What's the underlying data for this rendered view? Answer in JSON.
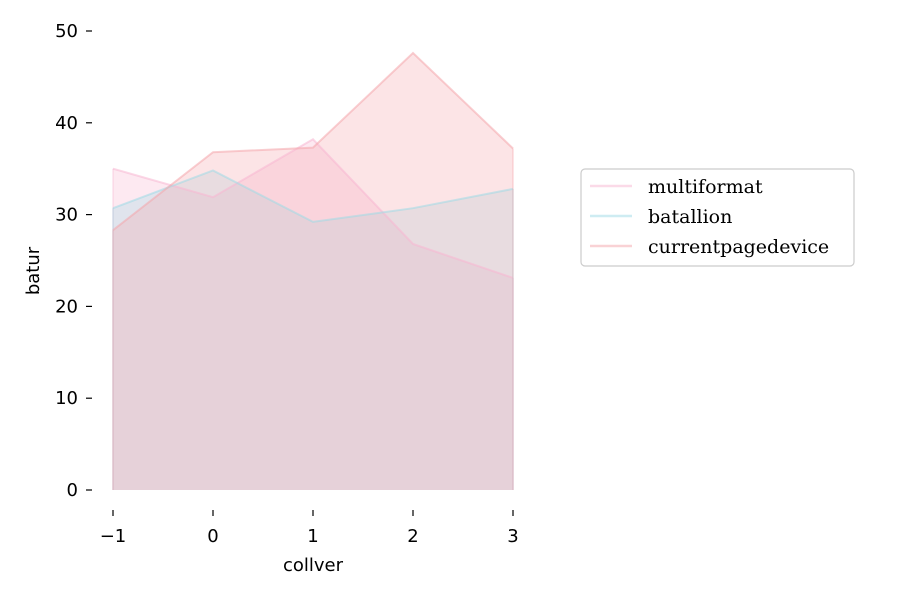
{
  "chart_data": {
    "type": "area",
    "x": [
      -1,
      0,
      1,
      2,
      3
    ],
    "x_tick_labels": [
      "−1",
      "0",
      "1",
      "2",
      "3"
    ],
    "y_ticks": [
      0,
      10,
      20,
      30,
      40,
      50
    ],
    "xlabel": "collver",
    "ylabel": "batur",
    "xlim": [
      -1,
      3
    ],
    "ylim": [
      0,
      50
    ],
    "grid": false,
    "legend_position": "right",
    "series": [
      {
        "name": "multiformat",
        "values": [
          35.0,
          31.9,
          38.2,
          26.8,
          23.1
        ],
        "color": "#f7b6d2"
      },
      {
        "name": "batallion",
        "values": [
          30.7,
          34.8,
          29.2,
          30.7,
          32.8
        ],
        "color": "#9edae5"
      },
      {
        "name": "currentpagedevice",
        "values": [
          28.3,
          36.8,
          37.3,
          47.6,
          37.2
        ],
        "color": "#f4a6ab"
      }
    ]
  }
}
